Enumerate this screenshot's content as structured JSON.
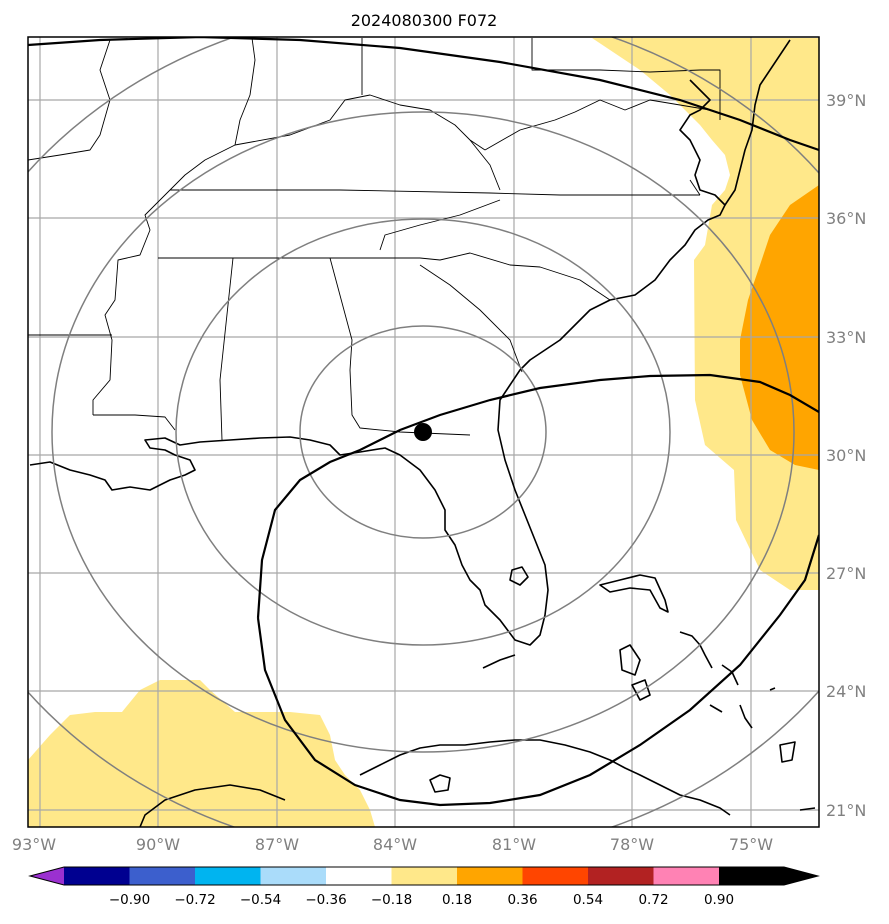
{
  "title": "2024080300 F072",
  "lat_labels": [
    "39°N",
    "36°N",
    "33°N",
    "30°N",
    "27°N",
    "24°N",
    "21°N"
  ],
  "lon_labels": [
    "93°W",
    "90°W",
    "87°W",
    "84°W",
    "81°W",
    "78°W",
    "75°W"
  ],
  "colorbar": {
    "tick_labels": [
      "−0.90",
      "−0.72",
      "−0.54",
      "−0.36",
      "−0.18",
      "0.18",
      "0.36",
      "0.54",
      "0.72",
      "0.90"
    ],
    "colors": [
      "#9b30d0",
      "#000090",
      "#3c5fcd",
      "#00b4f0",
      "#aadcfa",
      "#ffffff",
      "#ffe88a",
      "#ffa500",
      "#ff4500",
      "#b22222",
      "#ff82b4"
    ]
  },
  "fill_colors": {
    "level_018_036": "#ffe88a",
    "level_036_054": "#ffa500"
  }
}
